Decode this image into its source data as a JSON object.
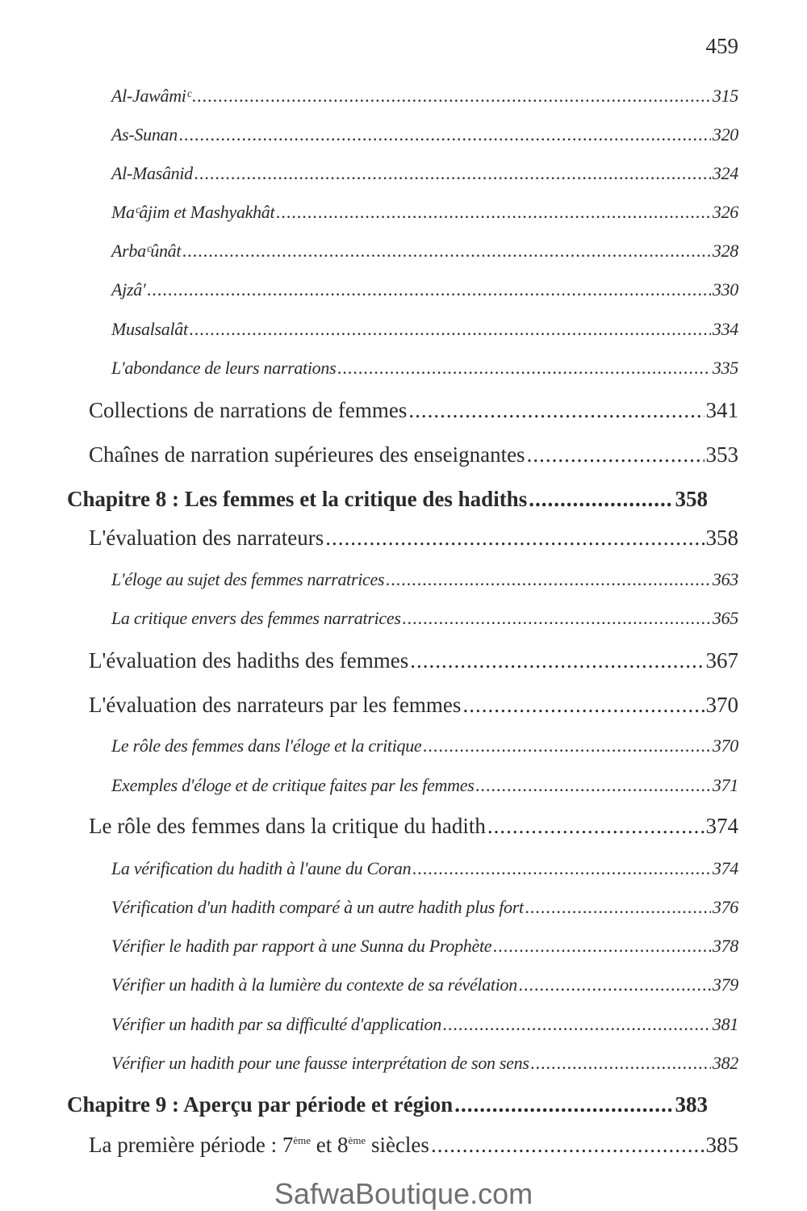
{
  "page_number": "459",
  "entries": [
    {
      "title": "Al-Jawâmiᶜ",
      "page": "315",
      "level": 2
    },
    {
      "title": "As-Sunan",
      "page": "320",
      "level": 2
    },
    {
      "title": "Al-Masânid",
      "page": "324",
      "level": 2
    },
    {
      "title": "Maᶜâjim et Mashyakhât",
      "page": "326",
      "level": 2
    },
    {
      "title": "Arbaᶜûnât",
      "page": "328",
      "level": 2
    },
    {
      "title": "Ajzâ'",
      "page": "330",
      "level": 2
    },
    {
      "title": "Musalsalât",
      "page": "334",
      "level": 2
    },
    {
      "title": "L'abondance de leurs narrations",
      "page": "335",
      "level": 2
    },
    {
      "title": "Collections de narrations de femmes",
      "page": "341",
      "level": 1
    },
    {
      "title": "Chaînes de narration supérieures des enseignantes",
      "page": "353",
      "level": 1
    },
    {
      "title": "Chapitre 8 : Les femmes et la critique des hadiths",
      "page": "358",
      "level": 0
    },
    {
      "title": "L'évaluation des narrateurs",
      "page": "358",
      "level": 1
    },
    {
      "title": "L'éloge au sujet des femmes narratrices",
      "page": "363",
      "level": 2
    },
    {
      "title": "La critique envers des femmes narratrices",
      "page": "365",
      "level": 2
    },
    {
      "title": "L'évaluation des hadiths des femmes",
      "page": "367",
      "level": 1
    },
    {
      "title": "L'évaluation des narrateurs par les femmes",
      "page": "370",
      "level": 1
    },
    {
      "title": "Le rôle des femmes dans l'éloge et la critique",
      "page": "370",
      "level": 2
    },
    {
      "title": "Exemples d'éloge et de critique faites par les femmes",
      "page": "371",
      "level": 2
    },
    {
      "title": "Le rôle des femmes dans la critique du hadith",
      "page": "374",
      "level": 1
    },
    {
      "title": "La vérification du hadith à l'aune du Coran",
      "page": "374",
      "level": 2
    },
    {
      "title": "Vérification d'un hadith comparé à un autre hadith plus fort",
      "page": "376",
      "level": 2
    },
    {
      "title": "Vérifier le hadith par rapport à une Sunna du Prophète",
      "page": "378",
      "level": 2
    },
    {
      "title": "Vérifier un hadith à la lumière du contexte de sa révélation",
      "page": "379",
      "level": 2
    },
    {
      "title": "Vérifier un hadith par sa difficulté d'application",
      "page": "381",
      "level": 2
    },
    {
      "title": "Vérifier un hadith pour une fausse interprétation de son sens",
      "page": "382",
      "level": 2
    },
    {
      "title": "Chapitre 9 : Aperçu par période et région",
      "page": "383",
      "level": 0
    }
  ],
  "last_entry": {
    "part1": "La première période : 7",
    "sup1": "ème",
    "part2": " et 8",
    "sup2": "ème",
    "part3": " siècles",
    "page": "385"
  },
  "watermark": "SafwaBoutique.com"
}
